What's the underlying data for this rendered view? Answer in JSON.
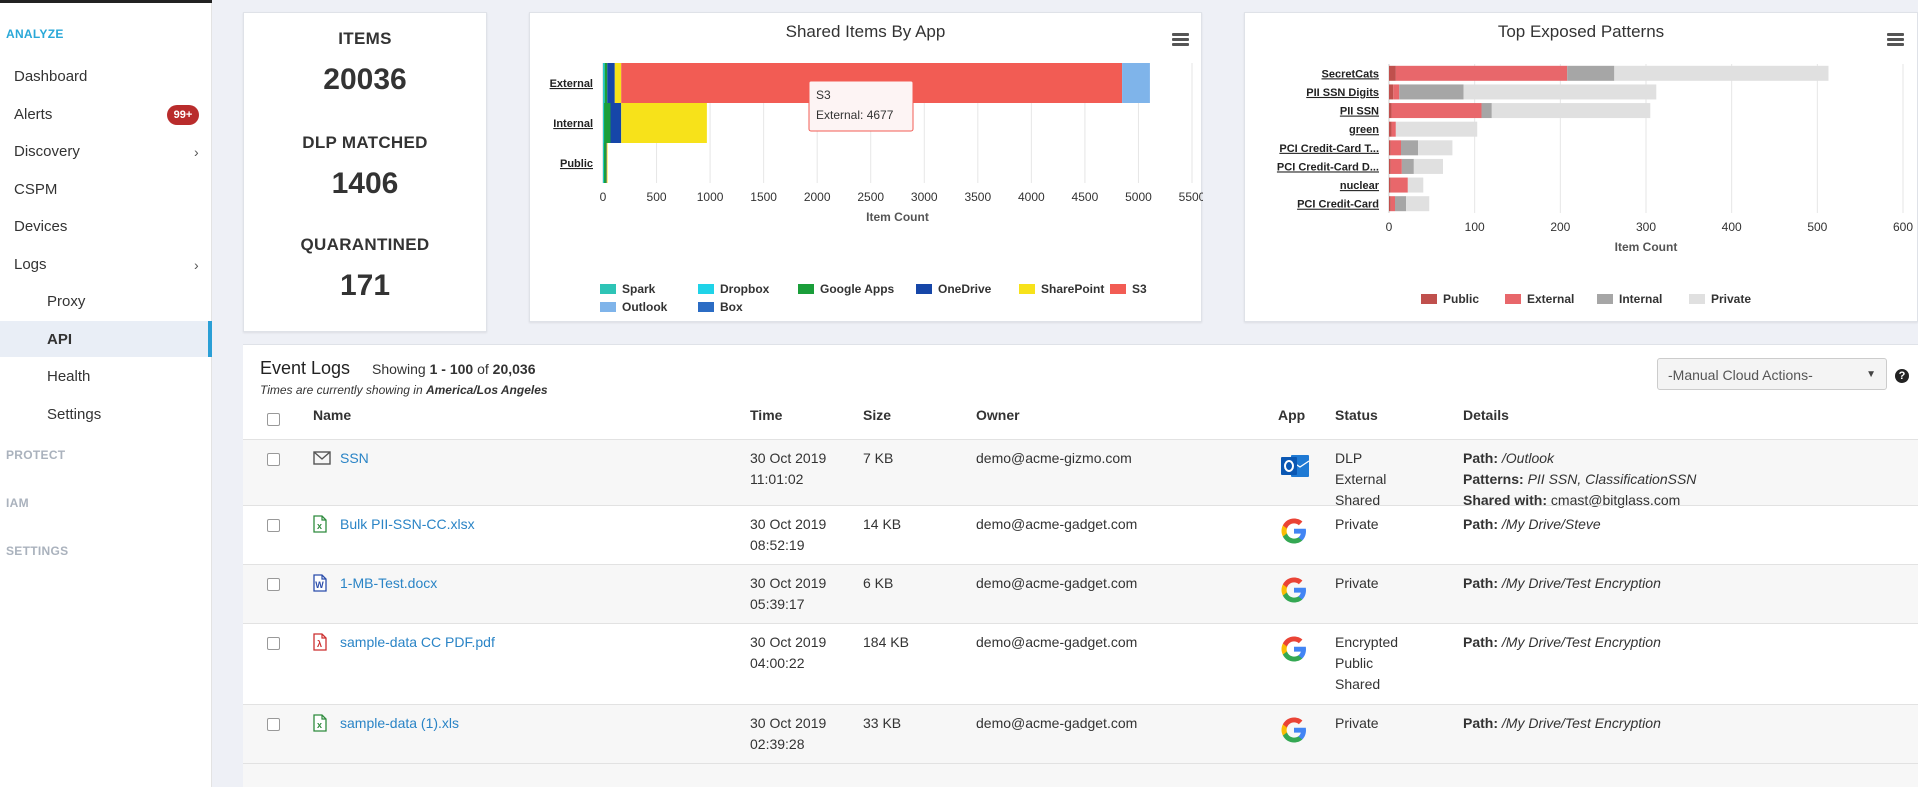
{
  "sidebar": {
    "sections": {
      "analyze": "ANALYZE",
      "protect": "PROTECT",
      "iam": "IAM",
      "settings": "SETTINGS"
    },
    "items": [
      {
        "label": "Dashboard"
      },
      {
        "label": "Alerts",
        "badge": "99+"
      },
      {
        "label": "Discovery"
      },
      {
        "label": "CSPM"
      },
      {
        "label": "Devices"
      },
      {
        "label": "Logs"
      },
      {
        "label": "Proxy"
      },
      {
        "label": "API"
      },
      {
        "label": "Health"
      },
      {
        "label": "Settings"
      }
    ]
  },
  "kpis": [
    {
      "label": "ITEMS",
      "value": "20036"
    },
    {
      "label": "DLP MATCHED",
      "value": "1406"
    },
    {
      "label": "QUARANTINED",
      "value": "171"
    }
  ],
  "chart_data": [
    {
      "type": "bar",
      "orientation": "horizontal",
      "stacked": true,
      "title": "Shared Items By App",
      "xlabel": "Item Count",
      "categories": [
        "External",
        "Internal",
        "Public"
      ],
      "xlim": [
        0,
        5500
      ],
      "ticks": [
        0,
        500,
        1000,
        1500,
        2000,
        2500,
        3000,
        3500,
        4000,
        4500,
        5000,
        5500
      ],
      "series": [
        {
          "name": "Spark",
          "color": "#2ec4b6",
          "values": [
            5,
            5,
            3
          ]
        },
        {
          "name": "Dropbox",
          "color": "#1fd3e8",
          "values": [
            10,
            5,
            5
          ]
        },
        {
          "name": "Google Apps",
          "color": "#1a9e3a",
          "values": [
            25,
            60,
            20
          ]
        },
        {
          "name": "OneDrive",
          "color": "#1646a8",
          "values": [
            70,
            100,
            5
          ]
        },
        {
          "name": "SharePoint",
          "color": "#f7e21a",
          "values": [
            60,
            800,
            2
          ]
        },
        {
          "name": "S3",
          "color": "#f25c54",
          "values": [
            4677,
            0,
            0
          ]
        },
        {
          "name": "Outlook",
          "color": "#7fb4ea",
          "values": [
            260,
            0,
            0
          ]
        },
        {
          "name": "Box",
          "color": "#2b6cc4",
          "values": [
            0,
            0,
            0
          ]
        }
      ],
      "legend_position": "bottom",
      "tooltip": {
        "title": "S3",
        "text": "External: 4677"
      }
    },
    {
      "type": "bar",
      "orientation": "horizontal",
      "stacked": true,
      "title": "Top Exposed Patterns",
      "xlabel": "Item Count",
      "categories": [
        "SecretCats",
        "PII SSN Digits",
        "PII SSN",
        "green",
        "PCI Credit-Card T...",
        "PCI Credit-Card D...",
        "nuclear",
        "PCI Credit-Card"
      ],
      "xlim": [
        0,
        600
      ],
      "ticks": [
        0,
        100,
        200,
        300,
        400,
        500,
        600
      ],
      "series": [
        {
          "name": "Public",
          "color": "#c0504d",
          "values": [
            8,
            5,
            3,
            3,
            2,
            2,
            2,
            2
          ]
        },
        {
          "name": "External",
          "color": "#e8676b",
          "values": [
            200,
            7,
            105,
            5,
            12,
            13,
            20,
            5
          ]
        },
        {
          "name": "Internal",
          "color": "#a6a6a6",
          "values": [
            55,
            75,
            12,
            0,
            20,
            14,
            0,
            13
          ]
        },
        {
          "name": "Private",
          "color": "#e0e0e0",
          "values": [
            250,
            225,
            185,
            95,
            40,
            34,
            18,
            27
          ]
        }
      ],
      "legend_position": "bottom"
    }
  ],
  "logs": {
    "title": "Event Logs",
    "showing_prefix": "Showing ",
    "range": "1 - 100",
    "of": " of ",
    "total": "20,036",
    "tz_prefix": "Times are currently showing in ",
    "tz": "America/Los Angeles",
    "manual_actions": "-Manual Cloud Actions-",
    "help": "?",
    "columns": {
      "name": "Name",
      "time": "Time",
      "size": "Size",
      "owner": "Owner",
      "app": "App",
      "status": "Status",
      "details": "Details"
    },
    "rows": [
      {
        "icon": "email",
        "name": "SSN",
        "date": "30 Oct 2019",
        "time": "11:01:02",
        "size": "7 KB",
        "owner": "demo@acme-gizmo.com",
        "app": "outlook",
        "status": [
          "DLP",
          "External",
          "Shared"
        ],
        "details": [
          {
            "label": "Path:",
            "value": "/Outlook",
            "italic": true
          },
          {
            "label": "Patterns:",
            "value": "PII SSN, ClassificationSSN",
            "italic": true
          },
          {
            "label": "Shared with:",
            "value": "cmast@bitglass.com",
            "italic": false
          }
        ]
      },
      {
        "icon": "excel",
        "name": "Bulk PII-SSN-CC.xlsx",
        "date": "30 Oct 2019",
        "time": "08:52:19",
        "size": "14 KB",
        "owner": "demo@acme-gadget.com",
        "app": "google",
        "status": [
          "Private"
        ],
        "details": [
          {
            "label": "Path:",
            "value": "/My Drive/Steve",
            "italic": true
          }
        ]
      },
      {
        "icon": "word",
        "name": "1-MB-Test.docx",
        "date": "30 Oct 2019",
        "time": "05:39:17",
        "size": "6 KB",
        "owner": "demo@acme-gadget.com",
        "app": "google",
        "status": [
          "Private"
        ],
        "details": [
          {
            "label": "Path:",
            "value": "/My Drive/Test Encryption",
            "italic": true
          }
        ]
      },
      {
        "icon": "pdf",
        "name": "sample-data CC PDF.pdf",
        "date": "30 Oct 2019",
        "time": "04:00:22",
        "size": "184 KB",
        "owner": "demo@acme-gadget.com",
        "app": "google",
        "status": [
          "Encrypted",
          "Public",
          "Shared"
        ],
        "details": [
          {
            "label": "Path:",
            "value": "/My Drive/Test Encryption",
            "italic": true
          }
        ]
      },
      {
        "icon": "excel",
        "name": "sample-data (1).xls",
        "date": "30 Oct 2019",
        "time": "02:39:28",
        "size": "33 KB",
        "owner": "demo@acme-gadget.com",
        "app": "google",
        "status": [
          "Private"
        ],
        "details": [
          {
            "label": "Path:",
            "value": "/My Drive/Test Encryption",
            "italic": true
          }
        ]
      }
    ]
  }
}
